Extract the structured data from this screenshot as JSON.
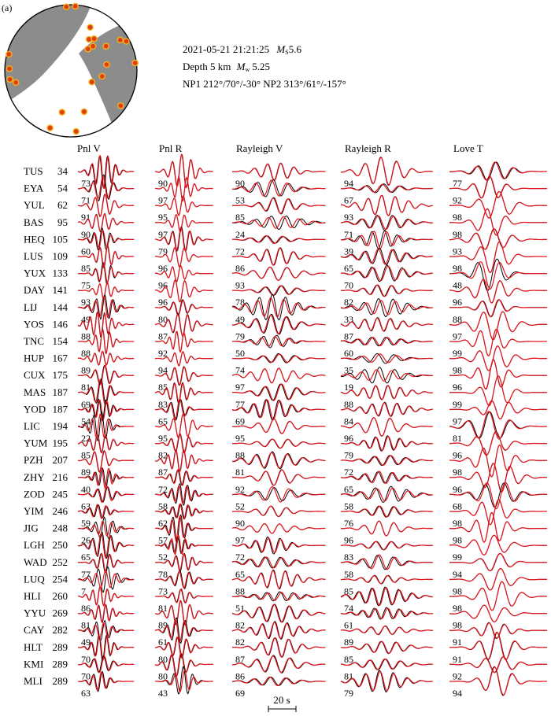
{
  "chart_data": {
    "type": "waveform-comparison",
    "panel_label": "(a)",
    "event": {
      "origin_time": "2021-05-21 21:21:25",
      "ms_label": "M",
      "ms_sub": "S",
      "ms_value": "5.6",
      "depth_text": "Depth 5 km",
      "mw_label": "M",
      "mw_sub": "w",
      "mw_value": "5.25",
      "np_text": "NP1 212°/70°/-30°  NP2 313°/61°/-157°"
    },
    "beachball_stations": [
      {
        "az": 4,
        "r": 0.98
      },
      {
        "az": 356,
        "r": 0.97
      },
      {
        "az": 24,
        "r": 0.72
      },
      {
        "az": 30,
        "r": 0.55
      },
      {
        "az": 36,
        "r": 0.6
      },
      {
        "az": 38,
        "r": 0.42
      },
      {
        "az": 42,
        "r": 0.5
      },
      {
        "az": 55,
        "r": 0.65
      },
      {
        "az": 58,
        "r": 0.88
      },
      {
        "az": 62,
        "r": 0.95
      },
      {
        "az": 80,
        "r": 0.55
      },
      {
        "az": 83,
        "r": 0.98
      },
      {
        "az": 100,
        "r": 0.48
      },
      {
        "az": 118,
        "r": 0.36
      },
      {
        "az": 125,
        "r": 0.92
      },
      {
        "az": 162,
        "r": 0.65
      },
      {
        "az": 175,
        "r": 0.92
      },
      {
        "az": 192,
        "r": 0.64
      },
      {
        "az": 200,
        "r": 0.92
      },
      {
        "az": 258,
        "r": 0.85
      },
      {
        "az": 262,
        "r": 0.93
      },
      {
        "az": 272,
        "r": 0.93
      },
      {
        "az": 285,
        "r": 0.97
      }
    ],
    "columns": [
      "Pnl V",
      "Pnl R",
      "Rayleigh V",
      "Rayleigh R",
      "Love T"
    ],
    "stations": [
      "TUS",
      "EYA",
      "YUL",
      "BAS",
      "HEQ",
      "LUS",
      "YUX",
      "DAY",
      "LIJ",
      "YOS",
      "TNC",
      "HUP",
      "CUX",
      "MAS",
      "YOD",
      "LIC",
      "YUM",
      "PZH",
      "ZHY",
      "ZOD",
      "YIM",
      "JIG",
      "LGH",
      "WAD",
      "LUQ",
      "HLI",
      "YYU",
      "CAY",
      "HLT",
      "KMI",
      "MLI"
    ],
    "distances_km": [
      "34",
      "54",
      "62",
      "95",
      "105",
      "109",
      "133",
      "141",
      "144",
      "146",
      "154",
      "167",
      "175",
      "187",
      "187",
      "194",
      "195",
      "207",
      "216",
      "245",
      "246",
      "248",
      "250",
      "252",
      "254",
      "260",
      "269",
      "282",
      "289",
      "289",
      "289"
    ],
    "correlation": [
      [
        "73",
        "71",
        "91",
        "90",
        "60",
        "85",
        "75",
        "93",
        "49",
        "88",
        "88",
        "89",
        "81",
        "69",
        "54",
        "22",
        "85",
        "89",
        "40",
        "63",
        "59",
        "26",
        "65",
        "77",
        "7",
        "86",
        "81",
        "49",
        "70",
        "70",
        "63"
      ],
      [
        "90",
        "97",
        "95",
        "97",
        "79",
        "96",
        "96",
        "96",
        "80",
        "87",
        "92",
        "94",
        "85",
        "83",
        "65",
        "95",
        "82",
        "87",
        "72",
        "58",
        "62",
        "57",
        "52",
        "78",
        "73",
        "81",
        "89",
        "61",
        "80",
        "80",
        "43"
      ],
      [
        "90",
        "53",
        "85",
        "24",
        "72",
        "86",
        "93",
        "78",
        "49",
        "79",
        "50",
        "74",
        "97",
        "77",
        "69",
        "95",
        "88",
        "81",
        "92",
        "52",
        "90",
        "97",
        "72",
        "65",
        "88",
        "51",
        "82",
        "82",
        "87",
        "86",
        "69"
      ],
      [
        "94",
        "67",
        "93",
        "71",
        "39",
        "65",
        "70",
        "82",
        "33",
        "87",
        "60",
        "35",
        "19",
        "88",
        "84",
        "96",
        "79",
        "72",
        "65",
        "58",
        "76",
        "96",
        "83",
        "58",
        "85",
        "74",
        "61",
        "89",
        "85",
        "81",
        "79"
      ],
      [
        "77",
        "92",
        "98",
        "98",
        "93",
        "98",
        "48",
        "96",
        "88",
        "97",
        "99",
        "98",
        "96",
        "99",
        "97",
        "81",
        "96",
        "98",
        "96",
        "68",
        "98",
        "98",
        "99",
        "94",
        "98",
        "98",
        "98",
        "91",
        "91",
        "92",
        "94"
      ]
    ],
    "observed_color": "#000000",
    "synthetic_color": "#e8141c",
    "scale_bar": "20 s"
  },
  "colors": {
    "compressional_fill": "#8c8c8c",
    "station_marker": "#e33b10",
    "station_marker_edge": "#f2b31a"
  }
}
